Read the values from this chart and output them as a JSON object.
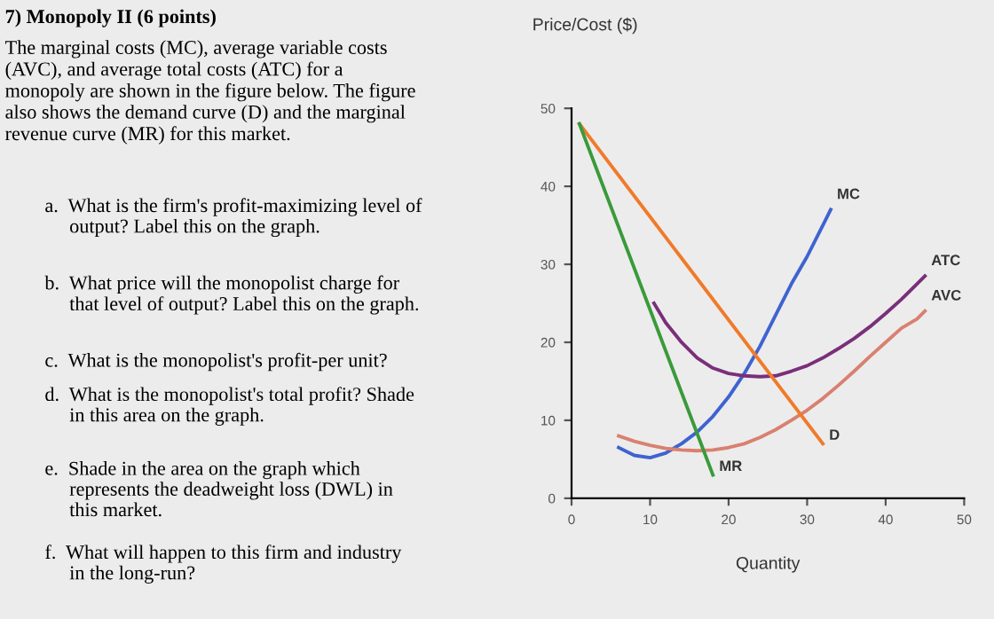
{
  "chart_data": {
    "type": "line",
    "title": "7) Monopoly II (6 points)",
    "subtitle": "The marginal costs (MC), average variable costs\n(AVC), and average total costs (ATC) for a\nmonopoly are shown in the figure below. The figure\nalso shows the demand curve (D) and the marginal\nrevenue curve (MR) for this market.",
    "annotations": [
      "a.  What is the firm's profit-maximizing level of\n     output? Label this on the graph.",
      "b.  What price will the monopolist charge for\n     that level of output? Label this on the graph.",
      "c.  What is the monopolist's profit-per unit?",
      "d.  What is the monopolist's total profit? Shade\n     in this area on the graph.",
      "e.  Shade in the area on the graph which\n     represents the deadweight loss (DWL) in\n     this market.",
      "f.  What will happen to this firm and industry\n     in the long-run?"
    ],
    "xlabel": "Quantity",
    "ylabel": "Price/Cost ($)",
    "series": [
      {
        "name": "MC",
        "color": "#3f63d0",
        "x": [
          6,
          8,
          10,
          12,
          14,
          16,
          18,
          20,
          22,
          24,
          26,
          28,
          30,
          32,
          33
        ],
        "values": [
          6.5,
          5.5,
          5.2,
          5.8,
          7,
          8.5,
          10.5,
          13,
          16,
          19.5,
          23.5,
          27.5,
          31,
          35,
          37
        ]
      },
      {
        "name": "ATC",
        "color": "#7a2f7a",
        "x": [
          10.5,
          12,
          14,
          16,
          18,
          20,
          22,
          24,
          26,
          28,
          30,
          32,
          34,
          36,
          38,
          40,
          42,
          44,
          45
        ],
        "values": [
          25,
          22.5,
          20,
          18,
          16.7,
          16,
          15.7,
          15.6,
          15.7,
          16.3,
          17,
          18,
          19.2,
          20.5,
          22,
          23.7,
          25.5,
          27.5,
          28.5
        ]
      },
      {
        "name": "AVC",
        "color": "#d98070",
        "x": [
          6,
          8,
          10,
          12,
          14,
          16,
          18,
          20,
          22,
          24,
          26,
          28,
          30,
          32,
          34,
          36,
          38,
          40,
          42,
          44,
          45
        ],
        "values": [
          8,
          7.3,
          6.8,
          6.4,
          6.2,
          6.1,
          6.2,
          6.5,
          7,
          7.8,
          8.8,
          10,
          11.3,
          12.8,
          14.5,
          16.3,
          18.2,
          20,
          21.8,
          23,
          24
        ]
      },
      {
        "name": "D",
        "color": "#f07a2a",
        "x": [
          1,
          32
        ],
        "values": [
          48,
          7
        ]
      },
      {
        "name": "MR",
        "color": "#3a9a3a",
        "x": [
          1,
          18
        ],
        "values": [
          48,
          3
        ]
      }
    ],
    "xlim": [
      0,
      50
    ],
    "ylim": [
      0,
      50
    ],
    "xticks": [
      0,
      10,
      20,
      30,
      40,
      50
    ],
    "yticks": [
      0,
      10,
      20,
      30,
      40,
      50
    ],
    "grid": false,
    "legend": false,
    "marker": "none",
    "line_style": "solid"
  }
}
